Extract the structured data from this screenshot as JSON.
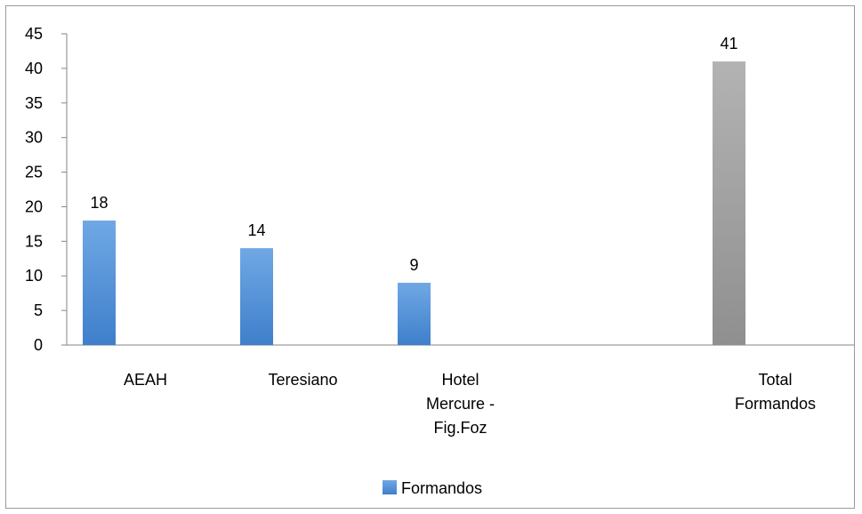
{
  "chart_data": {
    "type": "bar",
    "categories": [
      [
        "AEAH"
      ],
      [
        "Teresiano"
      ],
      [
        "Hotel",
        "Mercure -",
        "Fig.Foz"
      ],
      [],
      [
        "Total",
        "Formandos"
      ]
    ],
    "values": [
      18,
      14,
      9,
      null,
      41
    ],
    "data_labels": [
      "18",
      "14",
      "9",
      "",
      "41"
    ],
    "y_ticks": [
      "0",
      "5",
      "10",
      "15",
      "20",
      "25",
      "30",
      "35",
      "40",
      "45"
    ],
    "ylim": [
      0,
      45
    ],
    "title": "",
    "xlabel": "",
    "ylabel": "",
    "grid": false,
    "legend_position": "bottom",
    "series": [
      {
        "name": "Formandos",
        "color": "#4f8fd6"
      }
    ],
    "bar_colors": [
      "#4f8fd6",
      "#4f8fd6",
      "#4f8fd6",
      null,
      "#a6a6a6"
    ]
  }
}
